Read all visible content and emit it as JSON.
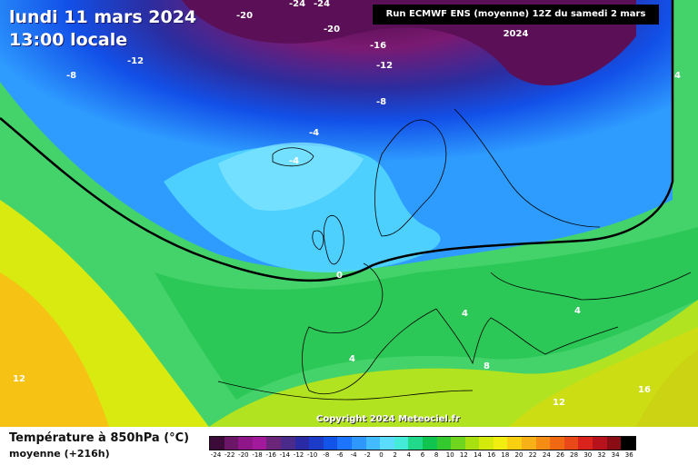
{
  "header": {
    "date_text": "lundi 11 mars 2024",
    "time_text": "13:00 locale",
    "run_text": "Run ECMWF ENS (moyenne) 12Z du samedi 2 mars 2024"
  },
  "footer": {
    "copyright": "Copyright 2024 Meteociel.fr",
    "legend_title": "Température à 850hPa (°C)",
    "legend_subtitle": "moyenne    (+216h)"
  },
  "map_labels": [
    "-24",
    "-24",
    "-20",
    "-20",
    "-16",
    "-12",
    "-12",
    "-8",
    "-8",
    "-4",
    "-4",
    "0",
    "4",
    "4",
    "4",
    "4",
    "8",
    "12",
    "12",
    "16"
  ],
  "legend_ticks": [
    "-24",
    "-22",
    "-20",
    "-18",
    "-16",
    "-14",
    "-12",
    "-10",
    "-8",
    "-6",
    "-4",
    "-2",
    "0",
    "2",
    "4",
    "6",
    "8",
    "10",
    "12",
    "14",
    "16",
    "18",
    "20",
    "22",
    "24",
    "26",
    "28",
    "30",
    "32",
    "34",
    "36"
  ],
  "legend_colors": [
    "#3d0b3a",
    "#6c1667",
    "#8f1689",
    "#a21a9b",
    "#6b2579",
    "#4a2a8b",
    "#2a2aa5",
    "#1c3bc8",
    "#1253e8",
    "#1d74ff",
    "#2f98ff",
    "#43bbff",
    "#5bdcff",
    "#44ebd8",
    "#22d88a",
    "#10c44f",
    "#34c92e",
    "#6fd51f",
    "#a8e010",
    "#d4ea0c",
    "#f1ee10",
    "#f8cf11",
    "#f7b015",
    "#f58c14",
    "#f16813",
    "#e94818",
    "#d9231c",
    "#b8131c",
    "#8a0c14",
    "#000000"
  ]
}
